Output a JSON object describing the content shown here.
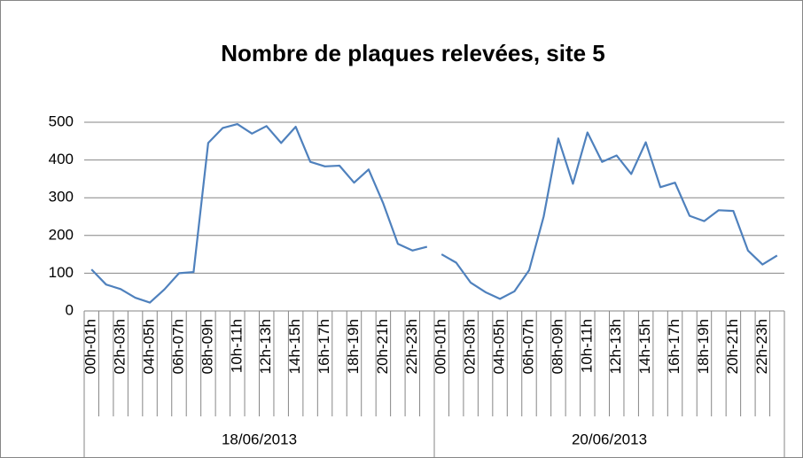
{
  "chart_data": {
    "type": "line",
    "title": "Nombre de plaques relevées, site 5",
    "color": "#4f81bd",
    "ylim": [
      0,
      500
    ],
    "yticks": [
      0,
      100,
      200,
      300,
      400,
      500
    ],
    "grid": true,
    "groups": [
      {
        "label": "18/06/2013",
        "categories": [
          "00h-01h",
          null,
          "02h-03h",
          null,
          "04h-05h",
          null,
          "06h-07h",
          null,
          "08h-09h",
          null,
          "10h-11h",
          null,
          "12h-13h",
          null,
          "14h-15h",
          null,
          "16h-17h",
          null,
          "18h-19h",
          null,
          "20h-21h",
          null,
          "22h-23h",
          null
        ],
        "values": [
          110,
          70,
          58,
          35,
          22,
          57,
          100,
          103,
          445,
          485,
          495,
          470,
          490,
          445,
          488,
          395,
          383,
          385,
          340,
          375,
          285,
          178,
          160,
          170
        ]
      },
      {
        "label": "20/06/2013",
        "categories": [
          "00h-01h",
          null,
          "02h-03h",
          null,
          "04h-05h",
          null,
          "06h-07h",
          null,
          "08h-09h",
          null,
          "10h-11h",
          null,
          "12h-13h",
          null,
          "14h-15h",
          null,
          "16h-17h",
          null,
          "18h-19h",
          null,
          "20h-21h",
          null,
          "22h-23h",
          null
        ],
        "values": [
          150,
          128,
          75,
          50,
          32,
          52,
          108,
          250,
          457,
          337,
          473,
          395,
          412,
          363,
          447,
          328,
          340,
          252,
          238,
          267,
          265,
          160,
          123,
          147
        ]
      }
    ]
  }
}
